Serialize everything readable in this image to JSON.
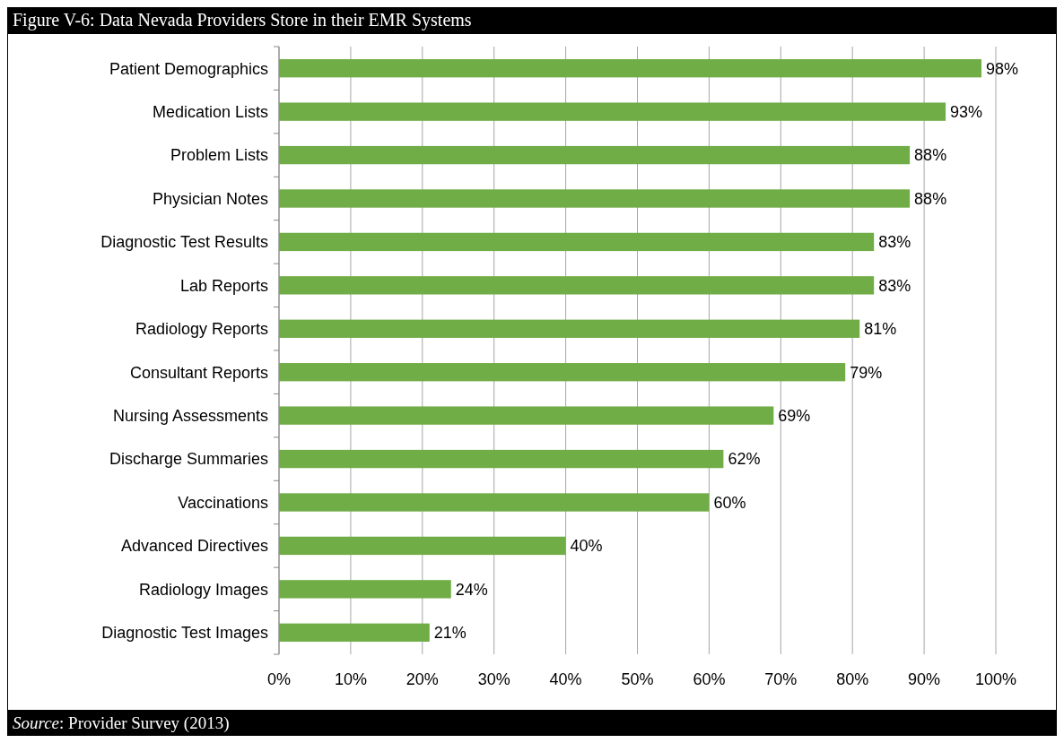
{
  "chart_data": {
    "type": "bar",
    "orientation": "horizontal",
    "title": "Figure V-6: Data Nevada Providers Store in their EMR Systems",
    "categories": [
      "Patient Demographics",
      "Medication Lists",
      "Problem Lists",
      "Physician Notes",
      "Diagnostic Test Results",
      "Lab Reports",
      "Radiology Reports",
      "Consultant Reports",
      "Nursing Assessments",
      "Discharge Summaries",
      "Vaccinations",
      "Advanced Directives",
      "Radiology Images",
      "Diagnostic Test Images"
    ],
    "values": [
      98,
      93,
      88,
      88,
      83,
      83,
      81,
      79,
      69,
      62,
      60,
      40,
      24,
      21
    ],
    "value_labels": [
      "98%",
      "93%",
      "88%",
      "88%",
      "83%",
      "83%",
      "81%",
      "79%",
      "69%",
      "62%",
      "60%",
      "40%",
      "24%",
      "21%"
    ],
    "color": "#70ad47",
    "xlim": [
      0,
      100
    ],
    "xticks": [
      {
        "value": 0,
        "label": "0%"
      },
      {
        "value": 10,
        "label": "10%"
      },
      {
        "value": 20,
        "label": "20%"
      },
      {
        "value": 30,
        "label": "30%"
      },
      {
        "value": 40,
        "label": "40%"
      },
      {
        "value": 50,
        "label": "50%"
      },
      {
        "value": 60,
        "label": "60%"
      },
      {
        "value": 70,
        "label": "70%"
      },
      {
        "value": 80,
        "label": "80%"
      },
      {
        "value": 90,
        "label": "90%"
      },
      {
        "value": 100,
        "label": "100%"
      }
    ],
    "grid": "x",
    "annotations": [
      "Source: Provider Survey (2013)"
    ]
  }
}
